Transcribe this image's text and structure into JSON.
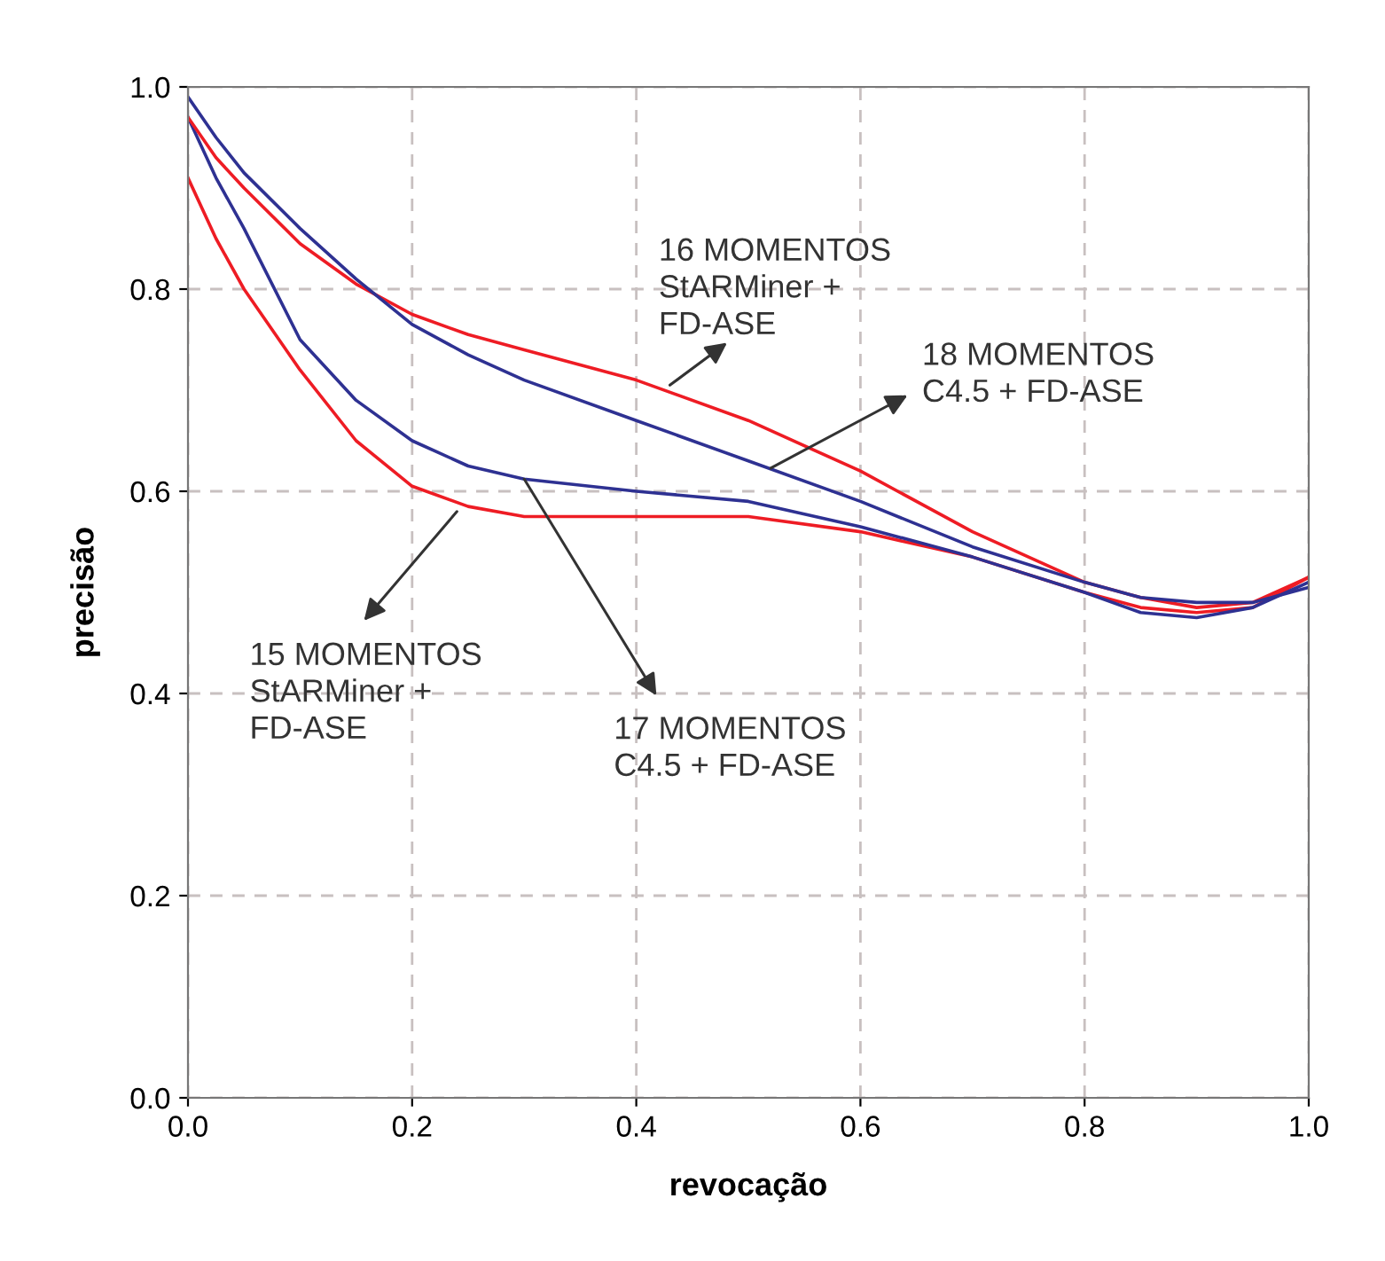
{
  "chart_data": {
    "type": "line",
    "xlabel": "revocação",
    "ylabel": "precisão",
    "x": [
      0.0,
      0.025,
      0.05,
      0.1,
      0.15,
      0.2,
      0.25,
      0.3,
      0.4,
      0.5,
      0.6,
      0.7,
      0.8,
      0.85,
      0.9,
      0.95,
      1.0
    ],
    "series": [
      {
        "color": "#ee1c24",
        "values": [
          0.91,
          0.85,
          0.8,
          0.72,
          0.65,
          0.605,
          0.585,
          0.575,
          0.575,
          0.575,
          0.56,
          0.535,
          0.5,
          0.485,
          0.48,
          0.485,
          0.515
        ]
      },
      {
        "color": "#2e3192",
        "values": [
          0.97,
          0.91,
          0.86,
          0.75,
          0.69,
          0.65,
          0.625,
          0.612,
          0.6,
          0.59,
          0.565,
          0.535,
          0.5,
          0.48,
          0.475,
          0.485,
          0.51
        ]
      },
      {
        "color": "#ee1c24",
        "values": [
          0.97,
          0.93,
          0.9,
          0.845,
          0.805,
          0.775,
          0.755,
          0.74,
          0.71,
          0.67,
          0.62,
          0.56,
          0.51,
          0.495,
          0.485,
          0.49,
          0.515
        ]
      },
      {
        "color": "#2e3192",
        "values": [
          0.99,
          0.95,
          0.915,
          0.86,
          0.81,
          0.765,
          0.735,
          0.71,
          0.67,
          0.63,
          0.59,
          0.545,
          0.51,
          0.495,
          0.49,
          0.49,
          0.505
        ]
      }
    ],
    "annotations": [
      {
        "text": "16 MOMENTOS\nStARMiner +\nFD-ASE",
        "x": 0.43,
        "y": 0.705
      },
      {
        "text": "18 MOMENTOS\nC4.5 + FD-ASE",
        "x": 0.52,
        "y": 0.623
      },
      {
        "text": "15 MOMENTOS\nStARMiner +\nFD-ASE",
        "x": 0.24,
        "y": 0.58
      },
      {
        "text": "17 MOMENTOS\nC4.5 + FD-ASE",
        "x": 0.3,
        "y": 0.612
      }
    ],
    "xlim": [
      0.0,
      1.0
    ],
    "ylim": [
      0.0,
      1.0
    ],
    "xticks": [
      {
        "value": 0.0,
        "label": "0.0"
      },
      {
        "value": 0.2,
        "label": "0.2"
      },
      {
        "value": 0.4,
        "label": "0.4"
      },
      {
        "value": 0.6,
        "label": "0.6"
      },
      {
        "value": 0.8,
        "label": "0.8"
      },
      {
        "value": 1.0,
        "label": "1.0"
      }
    ],
    "yticks": [
      {
        "value": 0.0,
        "label": "0.0"
      },
      {
        "value": 0.2,
        "label": "0.2"
      },
      {
        "value": 0.4,
        "label": "0.4"
      },
      {
        "value": 0.6,
        "label": "0.6"
      },
      {
        "value": 0.8,
        "label": "0.8"
      },
      {
        "value": 1.0,
        "label": "1.0"
      }
    ],
    "grid": true,
    "marker": "none",
    "line_style": "solid"
  }
}
